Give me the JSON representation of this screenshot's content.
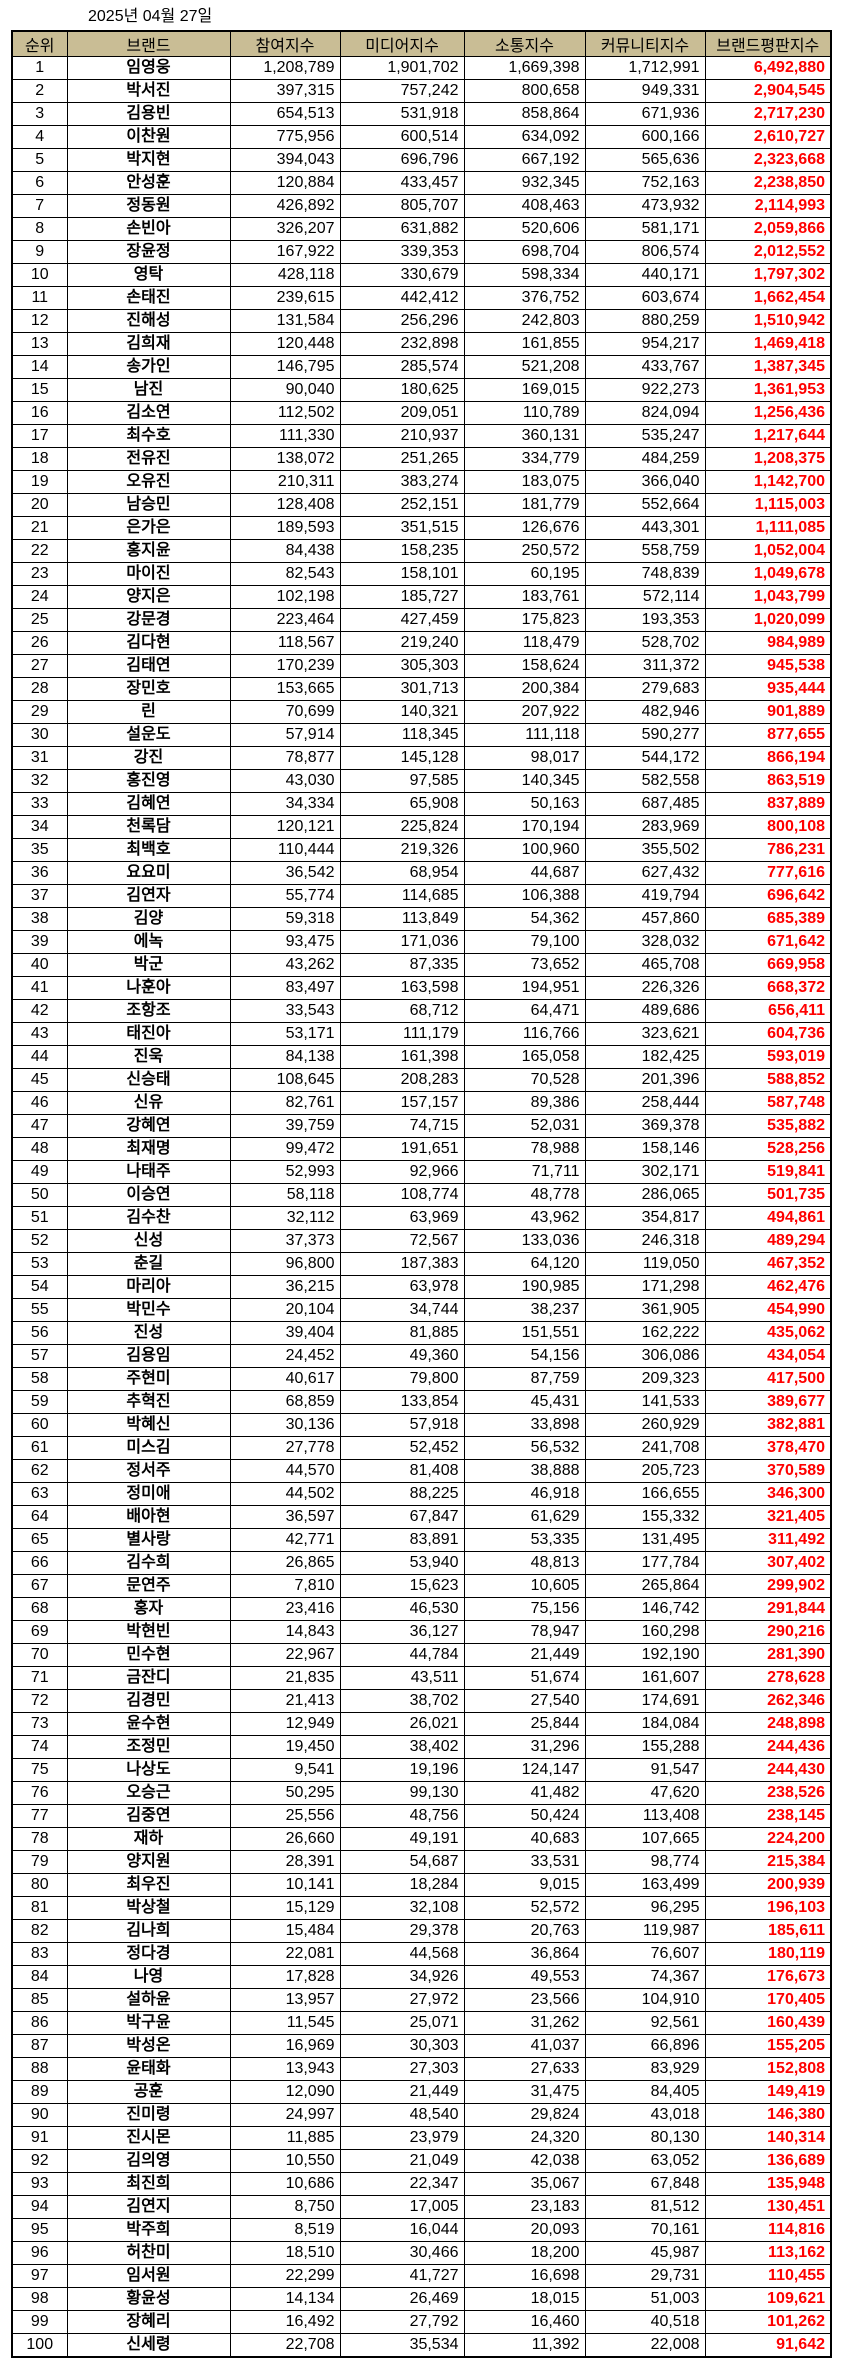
{
  "title": "2025년 04월 27일",
  "accent_color": "#ff0000",
  "header_color": "#c9bd95",
  "columns": [
    "순위",
    "브랜드",
    "참여지수",
    "미디어지수",
    "소통지수",
    "커뮤니티지수",
    "브랜드평판지수"
  ],
  "rows": [
    [
      "1",
      "임영웅",
      "1,208,789",
      "1,901,702",
      "1,669,398",
      "1,712,991",
      "6,492,880"
    ],
    [
      "2",
      "박서진",
      "397,315",
      "757,242",
      "800,658",
      "949,331",
      "2,904,545"
    ],
    [
      "3",
      "김용빈",
      "654,513",
      "531,918",
      "858,864",
      "671,936",
      "2,717,230"
    ],
    [
      "4",
      "이찬원",
      "775,956",
      "600,514",
      "634,092",
      "600,166",
      "2,610,727"
    ],
    [
      "5",
      "박지현",
      "394,043",
      "696,796",
      "667,192",
      "565,636",
      "2,323,668"
    ],
    [
      "6",
      "안성훈",
      "120,884",
      "433,457",
      "932,345",
      "752,163",
      "2,238,850"
    ],
    [
      "7",
      "정동원",
      "426,892",
      "805,707",
      "408,463",
      "473,932",
      "2,114,993"
    ],
    [
      "8",
      "손빈아",
      "326,207",
      "631,882",
      "520,606",
      "581,171",
      "2,059,866"
    ],
    [
      "9",
      "장윤정",
      "167,922",
      "339,353",
      "698,704",
      "806,574",
      "2,012,552"
    ],
    [
      "10",
      "영탁",
      "428,118",
      "330,679",
      "598,334",
      "440,171",
      "1,797,302"
    ],
    [
      "11",
      "손태진",
      "239,615",
      "442,412",
      "376,752",
      "603,674",
      "1,662,454"
    ],
    [
      "12",
      "진해성",
      "131,584",
      "256,296",
      "242,803",
      "880,259",
      "1,510,942"
    ],
    [
      "13",
      "김희재",
      "120,448",
      "232,898",
      "161,855",
      "954,217",
      "1,469,418"
    ],
    [
      "14",
      "송가인",
      "146,795",
      "285,574",
      "521,208",
      "433,767",
      "1,387,345"
    ],
    [
      "15",
      "남진",
      "90,040",
      "180,625",
      "169,015",
      "922,273",
      "1,361,953"
    ],
    [
      "16",
      "김소연",
      "112,502",
      "209,051",
      "110,789",
      "824,094",
      "1,256,436"
    ],
    [
      "17",
      "최수호",
      "111,330",
      "210,937",
      "360,131",
      "535,247",
      "1,217,644"
    ],
    [
      "18",
      "전유진",
      "138,072",
      "251,265",
      "334,779",
      "484,259",
      "1,208,375"
    ],
    [
      "19",
      "오유진",
      "210,311",
      "383,274",
      "183,075",
      "366,040",
      "1,142,700"
    ],
    [
      "20",
      "남승민",
      "128,408",
      "252,151",
      "181,779",
      "552,664",
      "1,115,003"
    ],
    [
      "21",
      "은가은",
      "189,593",
      "351,515",
      "126,676",
      "443,301",
      "1,111,085"
    ],
    [
      "22",
      "홍지윤",
      "84,438",
      "158,235",
      "250,572",
      "558,759",
      "1,052,004"
    ],
    [
      "23",
      "마이진",
      "82,543",
      "158,101",
      "60,195",
      "748,839",
      "1,049,678"
    ],
    [
      "24",
      "양지은",
      "102,198",
      "185,727",
      "183,761",
      "572,114",
      "1,043,799"
    ],
    [
      "25",
      "강문경",
      "223,464",
      "427,459",
      "175,823",
      "193,353",
      "1,020,099"
    ],
    [
      "26",
      "김다현",
      "118,567",
      "219,240",
      "118,479",
      "528,702",
      "984,989"
    ],
    [
      "27",
      "김태연",
      "170,239",
      "305,303",
      "158,624",
      "311,372",
      "945,538"
    ],
    [
      "28",
      "장민호",
      "153,665",
      "301,713",
      "200,384",
      "279,683",
      "935,444"
    ],
    [
      "29",
      "린",
      "70,699",
      "140,321",
      "207,922",
      "482,946",
      "901,889"
    ],
    [
      "30",
      "설운도",
      "57,914",
      "118,345",
      "111,118",
      "590,277",
      "877,655"
    ],
    [
      "31",
      "강진",
      "78,877",
      "145,128",
      "98,017",
      "544,172",
      "866,194"
    ],
    [
      "32",
      "홍진영",
      "43,030",
      "97,585",
      "140,345",
      "582,558",
      "863,519"
    ],
    [
      "33",
      "김혜연",
      "34,334",
      "65,908",
      "50,163",
      "687,485",
      "837,889"
    ],
    [
      "34",
      "천록담",
      "120,121",
      "225,824",
      "170,194",
      "283,969",
      "800,108"
    ],
    [
      "35",
      "최백호",
      "110,444",
      "219,326",
      "100,960",
      "355,502",
      "786,231"
    ],
    [
      "36",
      "요요미",
      "36,542",
      "68,954",
      "44,687",
      "627,432",
      "777,616"
    ],
    [
      "37",
      "김연자",
      "55,774",
      "114,685",
      "106,388",
      "419,794",
      "696,642"
    ],
    [
      "38",
      "김양",
      "59,318",
      "113,849",
      "54,362",
      "457,860",
      "685,389"
    ],
    [
      "39",
      "에녹",
      "93,475",
      "171,036",
      "79,100",
      "328,032",
      "671,642"
    ],
    [
      "40",
      "박군",
      "43,262",
      "87,335",
      "73,652",
      "465,708",
      "669,958"
    ],
    [
      "41",
      "나훈아",
      "83,497",
      "163,598",
      "194,951",
      "226,326",
      "668,372"
    ],
    [
      "42",
      "조항조",
      "33,543",
      "68,712",
      "64,471",
      "489,686",
      "656,411"
    ],
    [
      "43",
      "태진아",
      "53,171",
      "111,179",
      "116,766",
      "323,621",
      "604,736"
    ],
    [
      "44",
      "진욱",
      "84,138",
      "161,398",
      "165,058",
      "182,425",
      "593,019"
    ],
    [
      "45",
      "신승태",
      "108,645",
      "208,283",
      "70,528",
      "201,396",
      "588,852"
    ],
    [
      "46",
      "신유",
      "82,761",
      "157,157",
      "89,386",
      "258,444",
      "587,748"
    ],
    [
      "47",
      "강혜연",
      "39,759",
      "74,715",
      "52,031",
      "369,378",
      "535,882"
    ],
    [
      "48",
      "최재명",
      "99,472",
      "191,651",
      "78,988",
      "158,146",
      "528,256"
    ],
    [
      "49",
      "나태주",
      "52,993",
      "92,966",
      "71,711",
      "302,171",
      "519,841"
    ],
    [
      "50",
      "이승연",
      "58,118",
      "108,774",
      "48,778",
      "286,065",
      "501,735"
    ],
    [
      "51",
      "김수찬",
      "32,112",
      "63,969",
      "43,962",
      "354,817",
      "494,861"
    ],
    [
      "52",
      "신성",
      "37,373",
      "72,567",
      "133,036",
      "246,318",
      "489,294"
    ],
    [
      "53",
      "춘길",
      "96,800",
      "187,383",
      "64,120",
      "119,050",
      "467,352"
    ],
    [
      "54",
      "마리아",
      "36,215",
      "63,978",
      "190,985",
      "171,298",
      "462,476"
    ],
    [
      "55",
      "박민수",
      "20,104",
      "34,744",
      "38,237",
      "361,905",
      "454,990"
    ],
    [
      "56",
      "진성",
      "39,404",
      "81,885",
      "151,551",
      "162,222",
      "435,062"
    ],
    [
      "57",
      "김용임",
      "24,452",
      "49,360",
      "54,156",
      "306,086",
      "434,054"
    ],
    [
      "58",
      "주현미",
      "40,617",
      "79,800",
      "87,759",
      "209,323",
      "417,500"
    ],
    [
      "59",
      "추혁진",
      "68,859",
      "133,854",
      "45,431",
      "141,533",
      "389,677"
    ],
    [
      "60",
      "박혜신",
      "30,136",
      "57,918",
      "33,898",
      "260,929",
      "382,881"
    ],
    [
      "61",
      "미스김",
      "27,778",
      "52,452",
      "56,532",
      "241,708",
      "378,470"
    ],
    [
      "62",
      "정서주",
      "44,570",
      "81,408",
      "38,888",
      "205,723",
      "370,589"
    ],
    [
      "63",
      "정미애",
      "44,502",
      "88,225",
      "46,918",
      "166,655",
      "346,300"
    ],
    [
      "64",
      "배아현",
      "36,597",
      "67,847",
      "61,629",
      "155,332",
      "321,405"
    ],
    [
      "65",
      "별사랑",
      "42,771",
      "83,891",
      "53,335",
      "131,495",
      "311,492"
    ],
    [
      "66",
      "김수희",
      "26,865",
      "53,940",
      "48,813",
      "177,784",
      "307,402"
    ],
    [
      "67",
      "문연주",
      "7,810",
      "15,623",
      "10,605",
      "265,864",
      "299,902"
    ],
    [
      "68",
      "홍자",
      "23,416",
      "46,530",
      "75,156",
      "146,742",
      "291,844"
    ],
    [
      "69",
      "박현빈",
      "14,843",
      "36,127",
      "78,947",
      "160,298",
      "290,216"
    ],
    [
      "70",
      "민수현",
      "22,967",
      "44,784",
      "21,449",
      "192,190",
      "281,390"
    ],
    [
      "71",
      "금잔디",
      "21,835",
      "43,511",
      "51,674",
      "161,607",
      "278,628"
    ],
    [
      "72",
      "김경민",
      "21,413",
      "38,702",
      "27,540",
      "174,691",
      "262,346"
    ],
    [
      "73",
      "윤수현",
      "12,949",
      "26,021",
      "25,844",
      "184,084",
      "248,898"
    ],
    [
      "74",
      "조정민",
      "19,450",
      "38,402",
      "31,296",
      "155,288",
      "244,436"
    ],
    [
      "75",
      "나상도",
      "9,541",
      "19,196",
      "124,147",
      "91,547",
      "244,430"
    ],
    [
      "76",
      "오승근",
      "50,295",
      "99,130",
      "41,482",
      "47,620",
      "238,526"
    ],
    [
      "77",
      "김중연",
      "25,556",
      "48,756",
      "50,424",
      "113,408",
      "238,145"
    ],
    [
      "78",
      "재하",
      "26,660",
      "49,191",
      "40,683",
      "107,665",
      "224,200"
    ],
    [
      "79",
      "양지원",
      "28,391",
      "54,687",
      "33,531",
      "98,774",
      "215,384"
    ],
    [
      "80",
      "최우진",
      "10,141",
      "18,284",
      "9,015",
      "163,499",
      "200,939"
    ],
    [
      "81",
      "박상철",
      "15,129",
      "32,108",
      "52,572",
      "96,295",
      "196,103"
    ],
    [
      "82",
      "김나희",
      "15,484",
      "29,378",
      "20,763",
      "119,987",
      "185,611"
    ],
    [
      "83",
      "정다경",
      "22,081",
      "44,568",
      "36,864",
      "76,607",
      "180,119"
    ],
    [
      "84",
      "나영",
      "17,828",
      "34,926",
      "49,553",
      "74,367",
      "176,673"
    ],
    [
      "85",
      "설하윤",
      "13,957",
      "27,972",
      "23,566",
      "104,910",
      "170,405"
    ],
    [
      "86",
      "박구윤",
      "11,545",
      "25,071",
      "31,262",
      "92,561",
      "160,439"
    ],
    [
      "87",
      "박성온",
      "16,969",
      "30,303",
      "41,037",
      "66,896",
      "155,205"
    ],
    [
      "88",
      "윤태화",
      "13,943",
      "27,303",
      "27,633",
      "83,929",
      "152,808"
    ],
    [
      "89",
      "공훈",
      "12,090",
      "21,449",
      "31,475",
      "84,405",
      "149,419"
    ],
    [
      "90",
      "진미령",
      "24,997",
      "48,540",
      "29,824",
      "43,018",
      "146,380"
    ],
    [
      "91",
      "진시몬",
      "11,885",
      "23,979",
      "24,320",
      "80,130",
      "140,314"
    ],
    [
      "92",
      "김의영",
      "10,550",
      "21,049",
      "42,038",
      "63,052",
      "136,689"
    ],
    [
      "93",
      "최진희",
      "10,686",
      "22,347",
      "35,067",
      "67,848",
      "135,948"
    ],
    [
      "94",
      "김연지",
      "8,750",
      "17,005",
      "23,183",
      "81,512",
      "130,451"
    ],
    [
      "95",
      "박주희",
      "8,519",
      "16,044",
      "20,093",
      "70,161",
      "114,816"
    ],
    [
      "96",
      "허찬미",
      "18,510",
      "30,466",
      "18,200",
      "45,987",
      "113,162"
    ],
    [
      "97",
      "임서원",
      "22,299",
      "41,727",
      "16,698",
      "29,731",
      "110,455"
    ],
    [
      "98",
      "황윤성",
      "14,134",
      "26,469",
      "18,015",
      "51,003",
      "109,621"
    ],
    [
      "99",
      "장혜리",
      "16,492",
      "27,792",
      "16,460",
      "40,518",
      "101,262"
    ],
    [
      "100",
      "신세령",
      "22,708",
      "35,534",
      "11,392",
      "22,008",
      "91,642"
    ]
  ]
}
